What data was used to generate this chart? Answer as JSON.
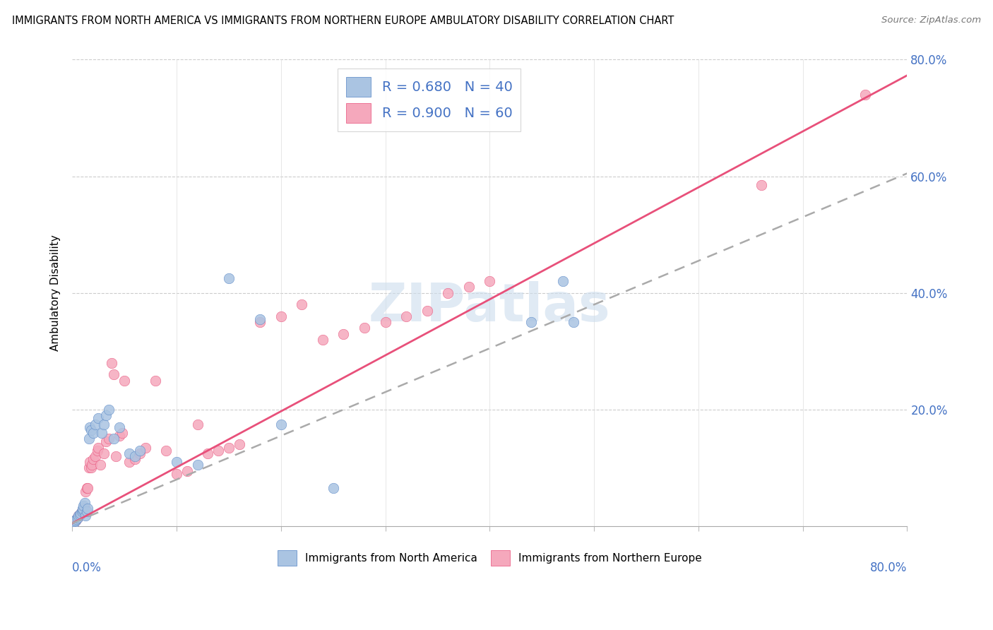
{
  "title": "IMMIGRANTS FROM NORTH AMERICA VS IMMIGRANTS FROM NORTHERN EUROPE AMBULATORY DISABILITY CORRELATION CHART",
  "source": "Source: ZipAtlas.com",
  "ylabel": "Ambulatory Disability",
  "legend_label1": "Immigrants from North America",
  "legend_label2": "Immigrants from Northern Europe",
  "R1": 0.68,
  "N1": 40,
  "R2": 0.9,
  "N2": 60,
  "color1": "#aac4e2",
  "color2": "#f5a8bc",
  "trendline1_color": "#5585c5",
  "trendline2_color": "#e8507a",
  "trendline1_dash": "dashed_gray",
  "watermark": "ZIPatlas",
  "watermark_color": "#ccdded",
  "xlim": [
    0.0,
    0.8
  ],
  "ylim": [
    0.0,
    0.8
  ],
  "scatter1_x": [
    0.001,
    0.002,
    0.003,
    0.004,
    0.005,
    0.006,
    0.007,
    0.008,
    0.009,
    0.01,
    0.01,
    0.011,
    0.012,
    0.013,
    0.014,
    0.015,
    0.016,
    0.017,
    0.018,
    0.02,
    0.022,
    0.025,
    0.028,
    0.03,
    0.032,
    0.035,
    0.04,
    0.045,
    0.055,
    0.06,
    0.065,
    0.1,
    0.12,
    0.15,
    0.18,
    0.2,
    0.25,
    0.44,
    0.47,
    0.48
  ],
  "scatter1_y": [
    0.005,
    0.008,
    0.01,
    0.012,
    0.015,
    0.018,
    0.02,
    0.022,
    0.025,
    0.028,
    0.03,
    0.035,
    0.04,
    0.018,
    0.025,
    0.03,
    0.15,
    0.17,
    0.165,
    0.16,
    0.175,
    0.185,
    0.16,
    0.175,
    0.19,
    0.2,
    0.15,
    0.17,
    0.125,
    0.12,
    0.13,
    0.11,
    0.105,
    0.425,
    0.355,
    0.175,
    0.065,
    0.35,
    0.42,
    0.35
  ],
  "scatter2_x": [
    0.001,
    0.002,
    0.003,
    0.004,
    0.005,
    0.006,
    0.007,
    0.008,
    0.009,
    0.01,
    0.011,
    0.012,
    0.013,
    0.014,
    0.015,
    0.016,
    0.017,
    0.018,
    0.019,
    0.02,
    0.022,
    0.024,
    0.025,
    0.027,
    0.03,
    0.032,
    0.035,
    0.038,
    0.04,
    0.042,
    0.045,
    0.048,
    0.05,
    0.055,
    0.06,
    0.065,
    0.07,
    0.08,
    0.09,
    0.1,
    0.11,
    0.12,
    0.13,
    0.14,
    0.15,
    0.16,
    0.18,
    0.2,
    0.22,
    0.24,
    0.26,
    0.28,
    0.3,
    0.32,
    0.34,
    0.36,
    0.38,
    0.4,
    0.66,
    0.76
  ],
  "scatter2_y": [
    0.005,
    0.008,
    0.01,
    0.012,
    0.015,
    0.018,
    0.02,
    0.022,
    0.025,
    0.028,
    0.03,
    0.032,
    0.06,
    0.065,
    0.065,
    0.1,
    0.11,
    0.1,
    0.105,
    0.115,
    0.12,
    0.13,
    0.135,
    0.105,
    0.125,
    0.145,
    0.15,
    0.28,
    0.26,
    0.12,
    0.155,
    0.16,
    0.25,
    0.11,
    0.115,
    0.125,
    0.135,
    0.25,
    0.13,
    0.09,
    0.095,
    0.175,
    0.125,
    0.13,
    0.135,
    0.14,
    0.35,
    0.36,
    0.38,
    0.32,
    0.33,
    0.34,
    0.35,
    0.36,
    0.37,
    0.4,
    0.41,
    0.42,
    0.585,
    0.74
  ],
  "trendline2_slope": 0.96,
  "trendline2_intercept": 0.005,
  "trendline1_slope": 0.75,
  "trendline1_intercept": 0.005
}
